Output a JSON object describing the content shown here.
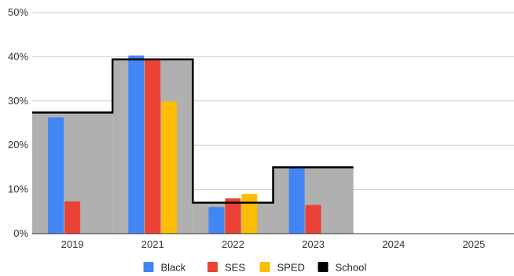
{
  "chart_data": {
    "type": "bar",
    "categories": [
      "2019",
      "2021",
      "2022",
      "2023",
      "2024",
      "2025"
    ],
    "ylim": [
      0,
      50
    ],
    "yticks": [
      "0%",
      "10%",
      "20%",
      "30%",
      "40%",
      "50%"
    ],
    "ytick_values": [
      0,
      10,
      20,
      30,
      40,
      50
    ],
    "grid": true,
    "legend_placement": "bottom",
    "series": [
      {
        "name": "Black",
        "color": "#4285F4",
        "values": [
          26.3,
          40.3,
          6.0,
          15.0,
          null,
          null
        ]
      },
      {
        "name": "SES",
        "color": "#EA4335",
        "values": [
          7.3,
          39.5,
          8.0,
          6.5,
          null,
          null
        ]
      },
      {
        "name": "SPED",
        "color": "#FBBC04",
        "values": [
          null,
          29.9,
          9.0,
          null,
          null,
          null
        ]
      }
    ],
    "overlay": {
      "name": "School",
      "type": "stepped-area",
      "color": "#000000",
      "fill": "#b0b0b0",
      "values": [
        27.4,
        39.4,
        7.0,
        15.0,
        null,
        null
      ]
    }
  }
}
